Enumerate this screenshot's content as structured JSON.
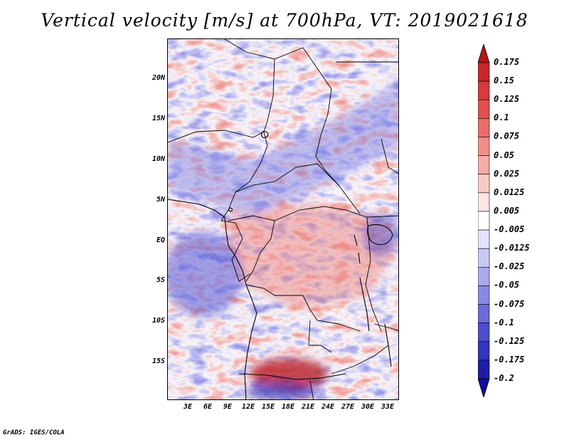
{
  "title": "Vertical velocity [m/s] at 700hPa, VT: 2019021618",
  "map": {
    "variable": "Vertical velocity",
    "units": "m/s",
    "level": "700hPa",
    "valid_time": "2019021618",
    "lat_ticks": [
      "20N",
      "15N",
      "10N",
      "5N",
      "EQ",
      "5S",
      "10S",
      "15S"
    ],
    "lon_ticks": [
      "3E",
      "6E",
      "9E",
      "12E",
      "15E",
      "18E",
      "21E",
      "24E",
      "27E",
      "30E",
      "33E"
    ]
  },
  "colorbar": {
    "labels": [
      "0.175",
      "0.15",
      "0.125",
      "0.1",
      "0.075",
      "0.05",
      "0.025",
      "0.0125",
      "0.005",
      "-0.005",
      "-0.0125",
      "-0.025",
      "-0.05",
      "-0.075",
      "-0.1",
      "-0.125",
      "-0.175",
      "-0.2"
    ],
    "colors": [
      "#b0191a",
      "#c8282b",
      "#d63a3b",
      "#e2504f",
      "#ea6d69",
      "#f08e88",
      "#f5aca6",
      "#f9cbc6",
      "#fce6e2",
      "#ffffff",
      "#e3e3fb",
      "#c8c8f4",
      "#a9a9ee",
      "#8a8ae5",
      "#6b6bdb",
      "#4e4ece",
      "#3434bc",
      "#1d1da6",
      "#10109a"
    ]
  },
  "footer": "GrADS: IGES/COLA"
}
